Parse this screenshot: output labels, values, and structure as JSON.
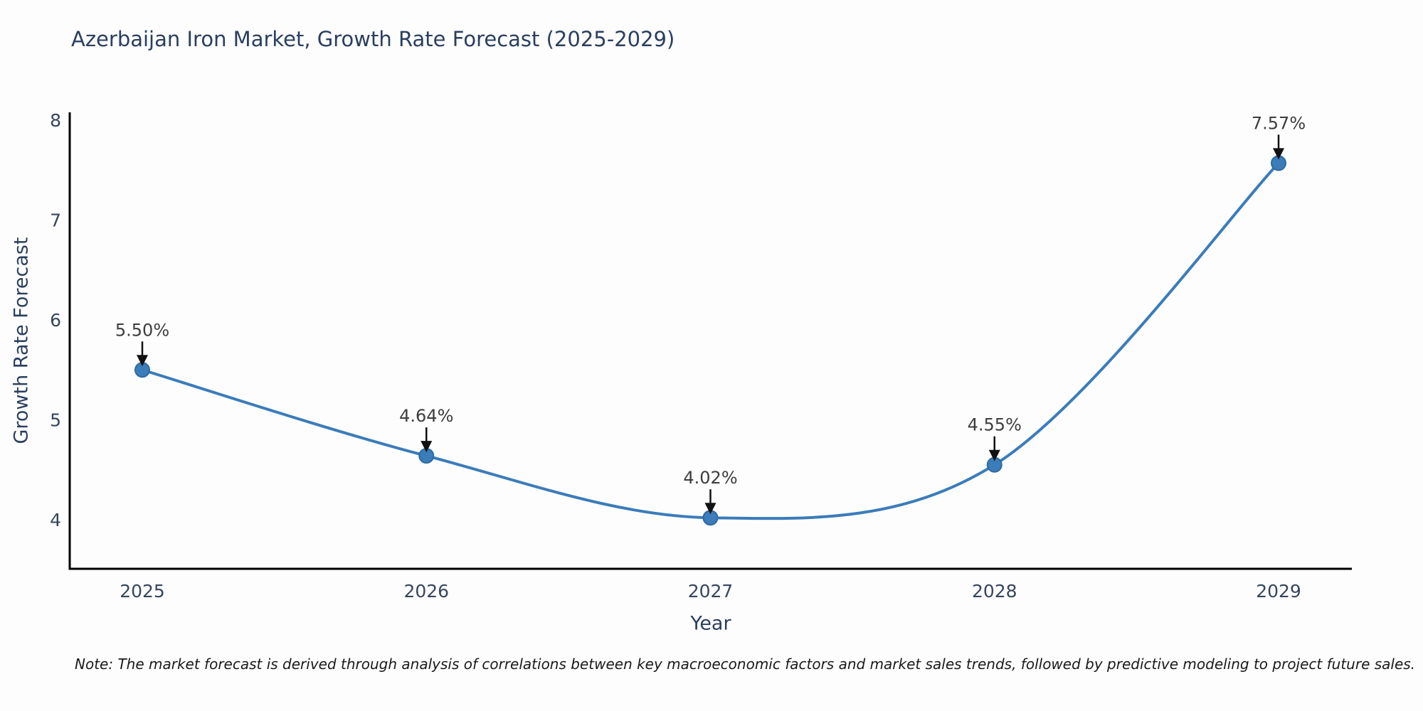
{
  "chart_data": {
    "type": "line",
    "title": "Azerbaijan Iron Market, Growth Rate Forecast (2025-2029)",
    "xlabel": "Year",
    "ylabel": "Growth Rate Forecast",
    "categories": [
      "2025",
      "2026",
      "2027",
      "2028",
      "2029"
    ],
    "values": [
      5.5,
      4.64,
      4.02,
      4.55,
      7.57
    ],
    "point_labels": [
      "5.50%",
      "4.64%",
      "4.02%",
      "4.55%",
      "7.57%"
    ],
    "y_ticks": [
      8,
      7,
      6,
      5,
      4
    ],
    "ylim": [
      3.4,
      8.1
    ],
    "grid": false,
    "legend_position": "none",
    "smooth": true,
    "colors": {
      "line": "#3b7cba",
      "marker_fill": "#3b7cba",
      "marker_edge": "#2f6aa0",
      "axis": "#000000",
      "title_text": "#2a3f5f",
      "tick_text": "#37465f",
      "annotation_text": "#3d3d3d",
      "arrow": "#111111",
      "background": "#fdfdfd"
    }
  },
  "note": "Note: The market forecast is derived through analysis of correlations between key macroeconomic factors and market sales trends, followed by predictive modeling to project future sales."
}
